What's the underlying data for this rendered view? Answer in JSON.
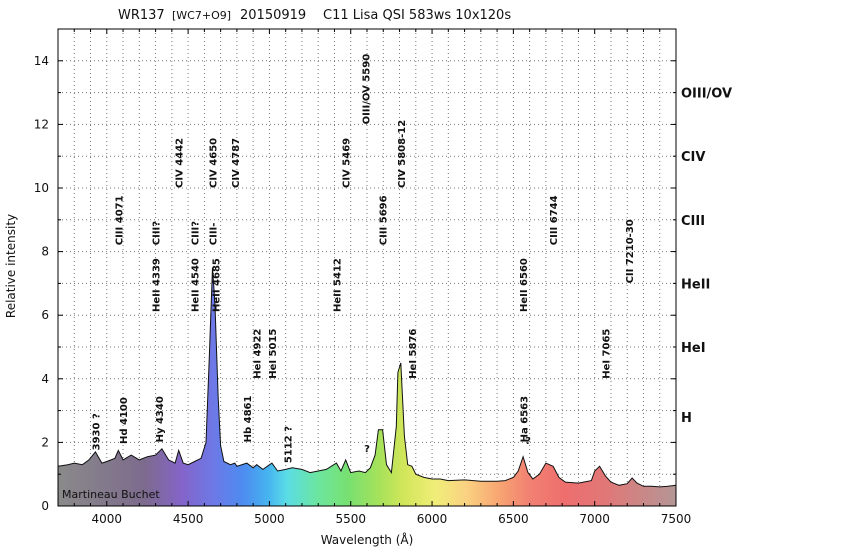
{
  "chart_data": {
    "type": "line",
    "title_parts": [
      "WR137",
      "[WC7+O9]",
      "20150919",
      "C11 Lisa QSI 583ws 10x120s"
    ],
    "xlabel": "Wavelength (Å)",
    "ylabel": "Relative intensity",
    "xlim": [
      3700,
      7500
    ],
    "ylim": [
      0,
      15
    ],
    "x_ticks": [
      4000,
      4500,
      5000,
      5500,
      6000,
      6500,
      7000,
      7500
    ],
    "y_ticks": [
      0,
      2,
      4,
      6,
      8,
      10,
      12,
      14
    ],
    "grid": true,
    "author": "Martineau Buchet",
    "series": [
      {
        "x": [
          3700,
          3760,
          3800,
          3850,
          3890,
          3930,
          3970,
          4000,
          4050,
          4071,
          4100,
          4150,
          4200,
          4250,
          4300,
          4339,
          4380,
          4420,
          4442,
          4470,
          4500,
          4540,
          4580,
          4610,
          4630,
          4650,
          4665,
          4685,
          4700,
          4720,
          4760,
          4787,
          4800,
          4861,
          4900,
          4922,
          4960,
          5015,
          5050,
          5100,
          5140,
          5200,
          5250,
          5300,
          5350,
          5412,
          5440,
          5469,
          5500,
          5550,
          5590,
          5620,
          5650,
          5670,
          5696,
          5720,
          5750,
          5780,
          5790,
          5808,
          5830,
          5850,
          5876,
          5900,
          5950,
          6000,
          6050,
          6100,
          6200,
          6300,
          6400,
          6450,
          6500,
          6530,
          6560,
          6590,
          6620,
          6660,
          6700,
          6744,
          6780,
          6820,
          6900,
          6980,
          7000,
          7030,
          7065,
          7100,
          7150,
          7200,
          7230,
          7260,
          7300,
          7350,
          7400,
          7450,
          7500
        ],
        "y": [
          1.25,
          1.3,
          1.35,
          1.3,
          1.45,
          1.7,
          1.35,
          1.4,
          1.5,
          1.75,
          1.45,
          1.6,
          1.45,
          1.55,
          1.6,
          1.8,
          1.45,
          1.35,
          1.75,
          1.35,
          1.3,
          1.4,
          1.5,
          2.0,
          4.6,
          7.5,
          6.4,
          3.4,
          1.9,
          1.4,
          1.3,
          1.35,
          1.25,
          1.35,
          1.2,
          1.3,
          1.15,
          1.35,
          1.1,
          1.15,
          1.2,
          1.15,
          1.05,
          1.1,
          1.15,
          1.35,
          1.1,
          1.45,
          1.05,
          1.1,
          1.05,
          1.2,
          1.6,
          2.4,
          2.4,
          1.3,
          1.05,
          2.5,
          4.2,
          4.5,
          2.2,
          1.3,
          1.25,
          1.0,
          0.9,
          0.85,
          0.85,
          0.8,
          0.82,
          0.78,
          0.78,
          0.8,
          0.9,
          1.1,
          1.55,
          1.05,
          0.85,
          1.0,
          1.35,
          1.25,
          0.9,
          0.75,
          0.72,
          0.8,
          1.1,
          1.25,
          0.95,
          0.75,
          0.65,
          0.7,
          0.88,
          0.72,
          0.62,
          0.62,
          0.6,
          0.62,
          0.65
        ]
      }
    ],
    "line_ids": [
      {
        "label": "3930 ?",
        "x": 3930,
        "y": 1.75
      },
      {
        "label": "CIII 4071",
        "x": 4071,
        "y": 8.2
      },
      {
        "label": "Hd 4100",
        "x": 4100,
        "y": 1.95
      },
      {
        "label": "CIII?",
        "x": 4300,
        "y": 8.2
      },
      {
        "label": "HeII 4339",
        "x": 4300,
        "y": 6.1
      },
      {
        "label": "Hy 4340",
        "x": 4320,
        "y": 2.0
      },
      {
        "label": "CIV 4442",
        "x": 4442,
        "y": 10.0
      },
      {
        "label": "CIII?",
        "x": 4540,
        "y": 8.2
      },
      {
        "label": "HeII 4540",
        "x": 4540,
        "y": 6.1
      },
      {
        "label": "CIV 4650",
        "x": 4650,
        "y": 10.0
      },
      {
        "label": "CIII-",
        "x": 4650,
        "y": 8.2
      },
      {
        "label": "HeII 4685",
        "x": 4670,
        "y": 6.1
      },
      {
        "label": "CIV 4787",
        "x": 4787,
        "y": 10.0
      },
      {
        "label": "Hb 4861",
        "x": 4861,
        "y": 2.0
      },
      {
        "label": "HeI 4922",
        "x": 4922,
        "y": 4.0
      },
      {
        "label": "HeI 5015",
        "x": 5015,
        "y": 4.0
      },
      {
        "label": "5112 ?",
        "x": 5112,
        "y": 1.35
      },
      {
        "label": "HeII 5412",
        "x": 5412,
        "y": 6.1
      },
      {
        "label": "CIV 5469",
        "x": 5469,
        "y": 10.0
      },
      {
        "label": "OIII/OV 5590",
        "x": 5590,
        "y": 12.0
      },
      {
        "label": "CIII 5696",
        "x": 5696,
        "y": 8.2
      },
      {
        "label": "CIV 5808-12",
        "x": 5808,
        "y": 10.0
      },
      {
        "label": "HeI 5876",
        "x": 5876,
        "y": 4.0
      },
      {
        "label": "HeII 6560",
        "x": 6560,
        "y": 6.1
      },
      {
        "label": "Ha 6563",
        "x": 6563,
        "y": 2.0
      },
      {
        "label": "CIII 6744",
        "x": 6744,
        "y": 8.2
      },
      {
        "label": "HeI 7065",
        "x": 7065,
        "y": 4.0
      },
      {
        "label": "CII 7210-30",
        "x": 7210,
        "y": 7.0
      }
    ],
    "question_marks": [
      {
        "label": "?",
        "x": 5600,
        "y": 1.7
      },
      {
        "label": "?",
        "x": 6590,
        "y": 1.95
      }
    ],
    "right_categories": [
      {
        "label": "OIII/OV",
        "y": 13.0
      },
      {
        "label": "CIV",
        "y": 11.0
      },
      {
        "label": "CIII",
        "y": 9.0
      },
      {
        "label": "HeII",
        "y": 7.0
      },
      {
        "label": "HeI",
        "y": 5.0
      },
      {
        "label": "H",
        "y": 2.8
      }
    ]
  }
}
